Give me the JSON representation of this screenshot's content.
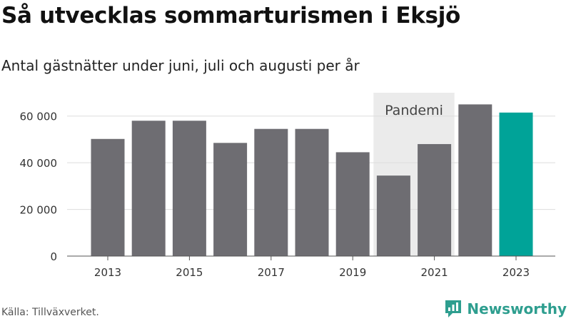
{
  "header": {
    "title": "Så utvecklas sommarturismen i Eksjö",
    "subtitle": "Antal gästnätter under juni, juli och augusti per år"
  },
  "footer": {
    "source": "Källa: Tillväxverket.",
    "brand_name": "Newsworthy"
  },
  "colors": {
    "bar": "#6e6d72",
    "highlight": "#00a398",
    "shade": "#ebebeb",
    "grid": "#dddddd",
    "brand": "#2e9e8f"
  },
  "chart_data": {
    "type": "bar",
    "title": "Så utvecklas sommarturismen i Eksjö",
    "subtitle": "Antal gästnätter under juni, juli och augusti per år",
    "xlabel": "",
    "ylabel": "",
    "categories": [
      "2013",
      "2014",
      "2015",
      "2016",
      "2017",
      "2018",
      "2019",
      "2020",
      "2021",
      "2022",
      "2023"
    ],
    "values": [
      50200,
      58000,
      58000,
      48500,
      54500,
      54500,
      44500,
      34500,
      48000,
      65000,
      61500
    ],
    "highlight_category": "2023",
    "ylim": [
      0,
      70000
    ],
    "yticks": [
      0,
      20000,
      40000,
      60000
    ],
    "ytick_labels": [
      "0",
      "20 000",
      "40 000",
      "60 000"
    ],
    "xtick_labels": [
      "2013",
      "2015",
      "2017",
      "2019",
      "2021",
      "2023"
    ],
    "grid": true,
    "legend": "none",
    "annotations": [
      {
        "text": "Pandemi",
        "from": "2020",
        "to": "2021"
      }
    ]
  }
}
